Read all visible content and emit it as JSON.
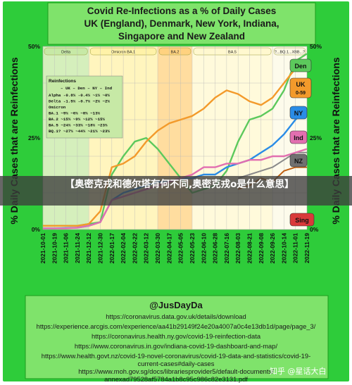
{
  "chart_data": {
    "type": "line",
    "title": [
      "Covid Re-Infections as a % of Daily Cases",
      "UK (England), Denmark, New York, Indiana,",
      "Singapore and New Zealand"
    ],
    "ylabel": "% Daily Cases that are Reinfections",
    "yticks": [
      "0%",
      "25%",
      "50%"
    ],
    "ylim": [
      0,
      50
    ],
    "xticks": [
      "2021-10-01",
      "2021-10-19",
      "2021-11-06",
      "2021-11-24",
      "2021-12-12",
      "2021-12-30",
      "2022-01-17",
      "2022-02-04",
      "2022-02-22",
      "2022-03-12",
      "2022-03-30",
      "2022-04-17",
      "2022-05-05",
      "2022-05-23",
      "2022-06-10",
      "2022-06-28",
      "2022-07-16",
      "2022-08-03",
      "2022-08-21",
      "2022-09-08",
      "2022-09-26",
      "2022-10-14",
      "2022-11-01",
      "2022-11-19"
    ],
    "variant_bands": [
      {
        "label": "Delta",
        "start": 0,
        "end": 4,
        "color": "#c7e9a6"
      },
      {
        "label": "Omicron BA.1",
        "start": 4,
        "end": 10,
        "color": "#fff2a8"
      },
      {
        "label": "BA.2",
        "start": 10,
        "end": 13,
        "color": "#ffd27f"
      },
      {
        "label": "BA.5",
        "start": 13,
        "end": 20,
        "color": "#fff8cf"
      },
      {
        "label": "?...BQ.1...XBB...?",
        "start": 20,
        "end": 23,
        "color": "#fcf9e4"
      }
    ],
    "series": [
      {
        "name": "Den",
        "color": "#5cc95c",
        "y": [
          1,
          1,
          1,
          1,
          1.5,
          2,
          15,
          20,
          24,
          25,
          22,
          18,
          14,
          10,
          11,
          12,
          16,
          24,
          30,
          31,
          33,
          38,
          46,
          48
        ]
      },
      {
        "name": "UK",
        "color": "#f39a2b",
        "y": [
          1,
          1,
          1,
          1,
          1.5,
          5,
          17,
          18,
          20,
          24,
          27,
          29,
          30,
          31,
          33,
          36,
          38,
          37,
          35,
          34,
          36,
          40,
          44,
          46
        ]
      },
      {
        "name": "NY",
        "color": "#2a8ce6",
        "y": [
          0.3,
          0.3,
          0.4,
          0.5,
          1,
          2,
          8,
          10,
          11,
          12,
          13,
          13,
          14,
          14,
          15,
          15,
          17,
          18,
          19,
          21,
          23,
          26,
          30,
          33
        ]
      },
      {
        "name": "Ind",
        "color": "#e26fb0",
        "y": [
          0.3,
          0.3,
          0.3,
          0.5,
          1,
          2,
          8,
          9,
          10,
          11,
          12,
          13,
          14,
          15,
          17,
          17,
          18,
          18,
          19,
          19,
          20,
          20,
          21,
          22
        ]
      },
      {
        "name": "NZ",
        "color": "#707070",
        "y": [
          null,
          null,
          null,
          null,
          null,
          null,
          null,
          null,
          null,
          null,
          null,
          null,
          null,
          null,
          null,
          null,
          null,
          null,
          null,
          null,
          null,
          null,
          null,
          null
        ]
      },
      {
        "name": "Sing",
        "color": "#d93a3a",
        "y": [
          null,
          null,
          null,
          null,
          null,
          null,
          null,
          null,
          null,
          null,
          null,
          null,
          null,
          null,
          null,
          null,
          null,
          null,
          null,
          null,
          14,
          null,
          null,
          null
        ]
      }
    ],
    "extra_lines": [
      {
        "name": "Singapore (dark orange)",
        "color": "#c06010",
        "y": [
          null,
          null,
          null,
          null,
          null,
          null,
          null,
          null,
          null,
          null,
          null,
          null,
          null,
          null,
          null,
          null,
          null,
          11,
          12,
          14,
          13,
          16,
          17,
          17
        ]
      },
      {
        "name": "NZ (grey)",
        "color": "#8a8a8a",
        "y": [
          null,
          null,
          null,
          null,
          null,
          null,
          null,
          null,
          null,
          null,
          null,
          null,
          null,
          null,
          null,
          null,
          null,
          14,
          15,
          16,
          17,
          19,
          21,
          21
        ]
      }
    ],
    "legend_table": {
      "title": "Reinfections",
      "header": "– UK – Den – NY – Ind",
      "rows": [
        "Alpha   -0.8%  -0.4%  ~1%   ~0%",
        "Delta   -1.5%  -0.7%  ~2%   ~2%",
        "Omicron",
        "BA.1    ~9%   ~6%   ~8%   ~13%",
        "BA.2    ~15%  ~9%   ~12%  ~15%",
        "BA.5    ~24%  ~33%  ~18%  ~23%",
        "BQ.1?   ~27%  ~44%  ~21%  ~23%"
      ]
    }
  },
  "banner": {
    "text": "【奥密克戎和德尔塔有何不同,奥密克戎o是什么意思】"
  },
  "sources": {
    "handle": "@JusDayDa",
    "lines": [
      "https://coronavirus.data.gov.uk/details/download",
      "https://experience.arcgis.com/experience/aa41b29149f24e20a4007a0c4e13db1d/page/page_3/",
      "https://coronavirus.health.ny.gov/covid-19-reinfection-data",
      "https://www.coronavirus.in.gov/indiana-covid-19-dashboard-and-map/",
      "https://www.health.govt.nz/covid-19-novel-coronavirus/covid-19-data-and-statistics/covid-19-",
      "current-cases#daily-cases",
      "https://www.moh.gov.sg/docs/librariesprovider5/default-documents/",
      "annexad79528af5784a1b8c95c986c82e3131.pdf"
    ]
  },
  "watermark": "知乎 @星话大白"
}
